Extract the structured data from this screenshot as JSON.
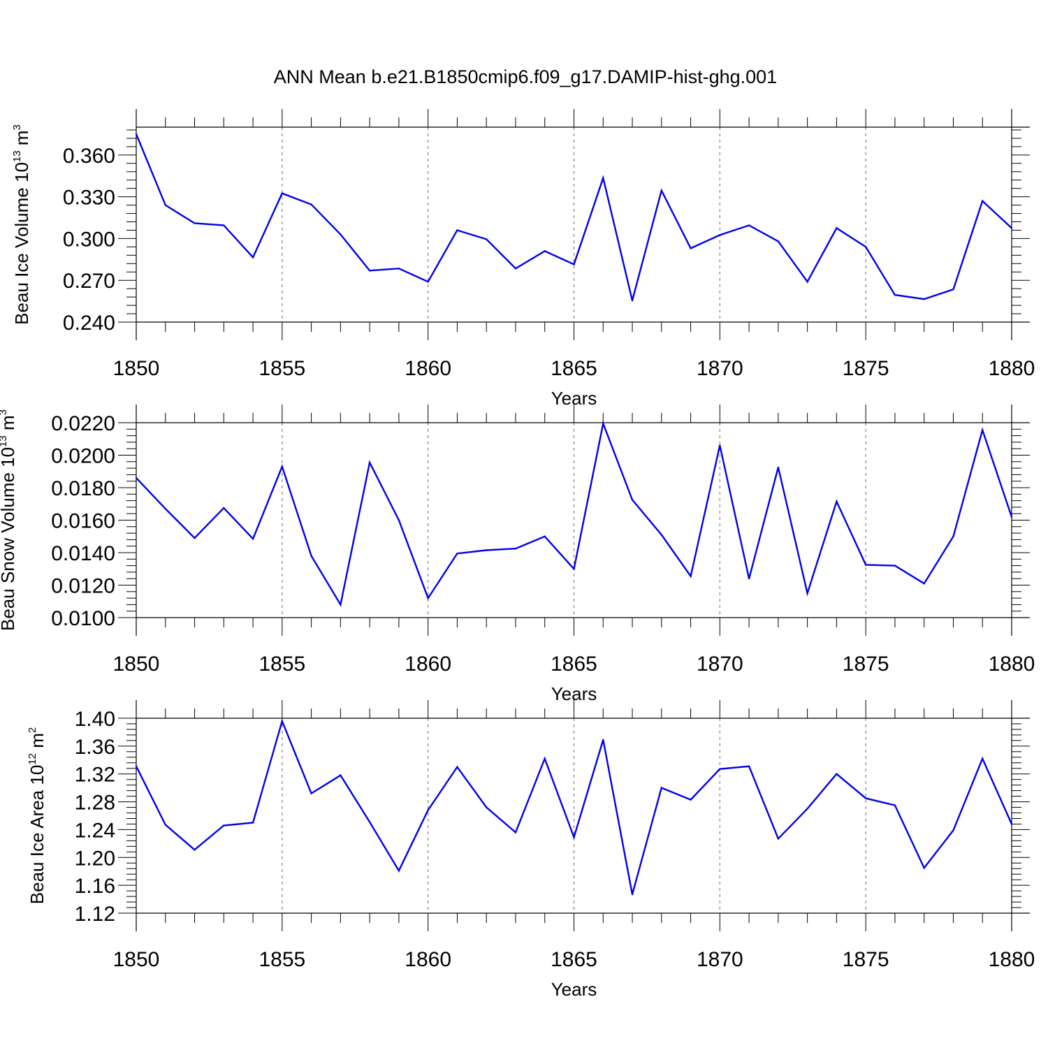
{
  "figure_title": "ANN Mean b.e21.B1850cmip6.f09_g17.DAMIP-hist-ghg.001",
  "colors": {
    "series": "#0000ee",
    "axes": "#000000",
    "grid": "#808080"
  },
  "chart_data": [
    {
      "type": "line",
      "ylabel": {
        "main": "Beau Ice Volume 10",
        "exp": "13",
        "unit": " m",
        "unit_exp": "3"
      },
      "xlabel": "Years",
      "xlim": [
        1850,
        1880
      ],
      "ylim": [
        0.24,
        0.38
      ],
      "yticks": [
        0.24,
        0.27,
        0.3,
        0.33,
        0.36
      ],
      "ytick_labels": [
        "0.240",
        "0.270",
        "0.300",
        "0.330",
        "0.360"
      ],
      "xticks": [
        1850,
        1855,
        1860,
        1865,
        1870,
        1875,
        1880
      ],
      "xtick_labels": [
        "1850",
        "1855",
        "1860",
        "1865",
        "1870",
        "1875",
        "1880"
      ],
      "x": [
        1850,
        1851,
        1852,
        1853,
        1854,
        1855,
        1856,
        1857,
        1858,
        1859,
        1860,
        1861,
        1862,
        1863,
        1864,
        1865,
        1866,
        1867,
        1868,
        1869,
        1870,
        1871,
        1872,
        1873,
        1874,
        1875,
        1876,
        1877,
        1878,
        1879,
        1880
      ],
      "values": [
        0.375,
        0.324,
        0.311,
        0.3095,
        0.2865,
        0.3325,
        0.3245,
        0.303,
        0.277,
        0.2785,
        0.269,
        0.306,
        0.2995,
        0.2785,
        0.291,
        0.2815,
        0.3435,
        0.2555,
        0.3345,
        0.293,
        0.3025,
        0.3095,
        0.298,
        0.269,
        0.3075,
        0.294,
        0.2595,
        0.2565,
        0.2635,
        0.327,
        0.3075
      ]
    },
    {
      "type": "line",
      "ylabel": {
        "main": "Beau Snow Volume 10",
        "exp": "13",
        "unit": " m",
        "unit_exp": "3"
      },
      "xlabel": "Years",
      "xlim": [
        1850,
        1880
      ],
      "ylim": [
        0.01,
        0.022
      ],
      "yticks": [
        0.01,
        0.012,
        0.014,
        0.016,
        0.018,
        0.02,
        0.022
      ],
      "ytick_labels": [
        "0.0100",
        "0.0120",
        "0.0140",
        "0.0160",
        "0.0180",
        "0.0200",
        "0.0220"
      ],
      "xticks": [
        1850,
        1855,
        1860,
        1865,
        1870,
        1875,
        1880
      ],
      "xtick_labels": [
        "1850",
        "1855",
        "1860",
        "1865",
        "1870",
        "1875",
        "1880"
      ],
      "x": [
        1850,
        1851,
        1852,
        1853,
        1854,
        1855,
        1856,
        1857,
        1858,
        1859,
        1860,
        1861,
        1862,
        1863,
        1864,
        1865,
        1866,
        1867,
        1868,
        1869,
        1870,
        1871,
        1872,
        1873,
        1874,
        1875,
        1876,
        1877,
        1878,
        1879,
        1880
      ],
      "values": [
        0.0186,
        0.0167,
        0.0149,
        0.01675,
        0.01485,
        0.0193,
        0.0138,
        0.0108,
        0.01955,
        0.016,
        0.0112,
        0.01395,
        0.01415,
        0.01425,
        0.015,
        0.013,
        0.02195,
        0.01725,
        0.0151,
        0.01255,
        0.0206,
        0.0124,
        0.01925,
        0.0115,
        0.01715,
        0.01325,
        0.0132,
        0.0121,
        0.015,
        0.02155,
        0.0162
      ]
    },
    {
      "type": "line",
      "ylabel": {
        "main": "Beau Ice Area 10",
        "exp": "12",
        "unit": " m",
        "unit_exp": "2"
      },
      "xlabel": "Years",
      "xlim": [
        1850,
        1880
      ],
      "ylim": [
        1.12,
        1.4
      ],
      "yticks": [
        1.12,
        1.16,
        1.2,
        1.24,
        1.28,
        1.32,
        1.36,
        1.4
      ],
      "ytick_labels": [
        "1.12",
        "1.16",
        "1.20",
        "1.24",
        "1.28",
        "1.32",
        "1.36",
        "1.40"
      ],
      "xticks": [
        1850,
        1855,
        1860,
        1865,
        1870,
        1875,
        1880
      ],
      "xtick_labels": [
        "1850",
        "1855",
        "1860",
        "1865",
        "1870",
        "1875",
        "1880"
      ],
      "x": [
        1850,
        1851,
        1852,
        1853,
        1854,
        1855,
        1856,
        1857,
        1858,
        1859,
        1860,
        1861,
        1862,
        1863,
        1864,
        1865,
        1866,
        1867,
        1868,
        1869,
        1870,
        1871,
        1872,
        1873,
        1874,
        1875,
        1876,
        1877,
        1878,
        1879,
        1880
      ],
      "values": [
        1.331,
        1.247,
        1.211,
        1.246,
        1.25,
        1.396,
        1.292,
        1.318,
        1.251,
        1.181,
        1.268,
        1.33,
        1.272,
        1.236,
        1.342,
        1.229,
        1.369,
        1.147,
        1.3,
        1.283,
        1.327,
        1.331,
        1.227,
        1.27,
        1.32,
        1.285,
        1.275,
        1.185,
        1.239,
        1.342,
        1.248
      ]
    }
  ]
}
